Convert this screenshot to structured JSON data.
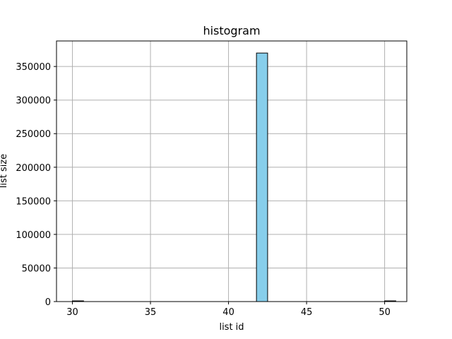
{
  "chart_data": {
    "type": "bar",
    "title": "histogram",
    "xlabel": "list id",
    "ylabel": "list size",
    "xlim": [
      28.98,
      51.42
    ],
    "ylim": [
      0,
      388000
    ],
    "xticks": [
      30,
      35,
      40,
      45,
      50
    ],
    "yticks": [
      0,
      50000,
      100000,
      150000,
      200000,
      250000,
      300000,
      350000
    ],
    "grid": true,
    "bin_width": 0.714,
    "bins": [
      {
        "x": 30.0,
        "value": 300
      },
      {
        "x": 41.79,
        "value": 370000
      },
      {
        "x": 50.0,
        "value": 300
      }
    ],
    "bar_color": "#87ceeb",
    "edge_color": "#000000"
  }
}
